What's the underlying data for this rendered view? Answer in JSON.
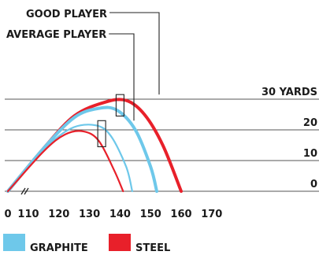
{
  "chart_data": {
    "type": "line",
    "xlabel": "",
    "ylabel": "",
    "x_ticks": [
      "0",
      "110",
      "120",
      "130",
      "140",
      "150",
      "160",
      "170"
    ],
    "x_axis_break": true,
    "xlim": [
      105,
      175
    ],
    "y_ticks": [
      {
        "value": 0,
        "label": "0"
      },
      {
        "value": 10,
        "label": "10"
      },
      {
        "value": 20,
        "label": "20"
      },
      {
        "value": 30,
        "label": "30 YARDS"
      }
    ],
    "ylim": [
      0,
      30
    ],
    "grid": true,
    "series": [
      {
        "name": "STEEL",
        "color": "#e8202a",
        "player": "good",
        "width": 4,
        "x": [
          0,
          115,
          125,
          135,
          142,
          148,
          154,
          160
        ],
        "y": [
          0,
          14,
          24.5,
          29,
          29.6,
          25,
          15,
          0
        ]
      },
      {
        "name": "GRAPHITE",
        "color": "#6ec8ea",
        "player": "good",
        "width": 4,
        "x": [
          0,
          115,
          125,
          133,
          139,
          145,
          150,
          152
        ],
        "y": [
          0,
          14,
          24,
          27,
          26.4,
          20,
          8,
          0
        ]
      },
      {
        "name": "GRAPHITE",
        "color": "#6ec8ea",
        "player": "average",
        "width": 2.2,
        "x": [
          0,
          115,
          124,
          132,
          137,
          142,
          144
        ],
        "y": [
          0,
          13.5,
          20.5,
          21.5,
          18,
          8,
          0
        ]
      },
      {
        "name": "STEEL",
        "color": "#e8202a",
        "player": "average",
        "width": 2.2,
        "x": [
          0,
          115,
          122,
          128,
          133,
          138,
          141
        ],
        "y": [
          0,
          13,
          18.5,
          19.5,
          16.5,
          7,
          0
        ]
      }
    ],
    "annotations": [
      {
        "text": "GOOD PLAYER",
        "target": "good",
        "apex_x": 140,
        "apex_y_range": [
          24.5,
          31.5
        ]
      },
      {
        "text": "AVERAGE PLAYER",
        "target": "average",
        "apex_x": 134,
        "apex_y_range": [
          14.5,
          23
        ]
      }
    ],
    "legend": {
      "position": "bottom-left",
      "items": [
        {
          "label": "GRAPHITE",
          "color": "#6ec8ea"
        },
        {
          "label": "STEEL",
          "color": "#e8202a"
        }
      ]
    }
  }
}
